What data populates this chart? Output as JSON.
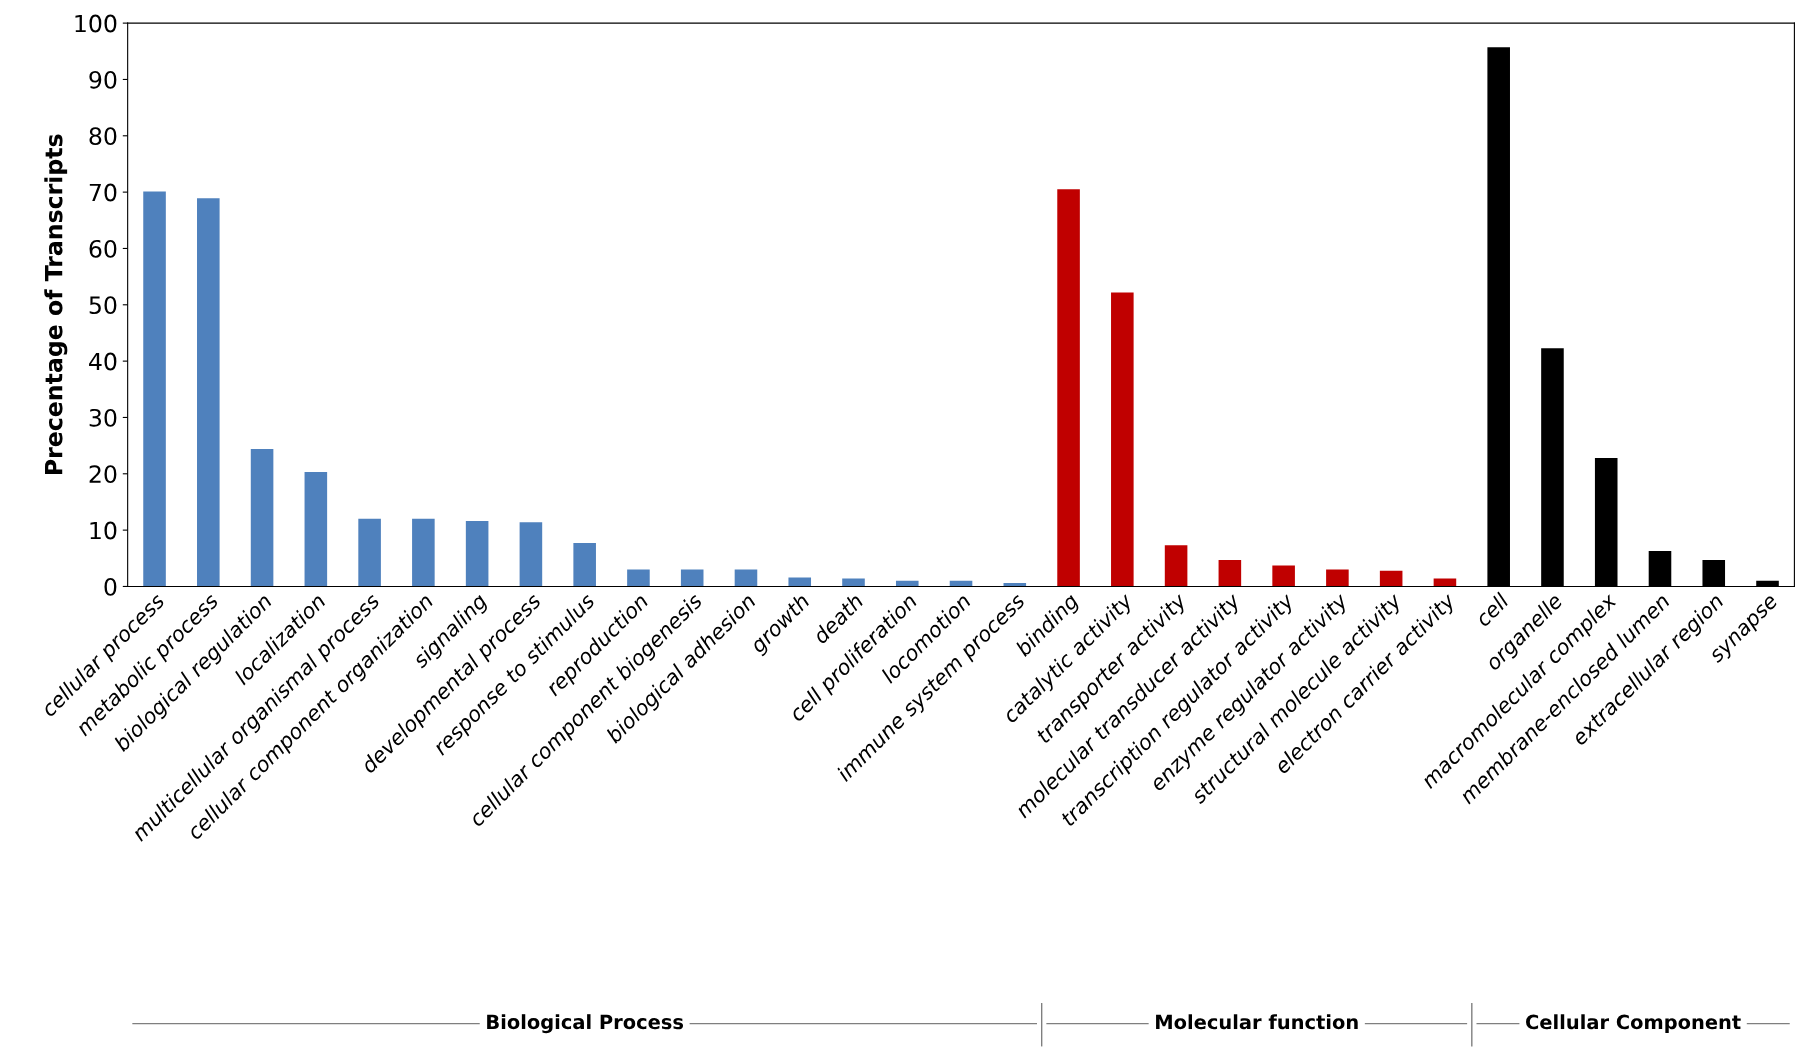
{
  "chart_data": {
    "type": "bar",
    "ylabel": "Precentage of Transcripts",
    "ylim": [
      0,
      100
    ],
    "yticks": [
      0,
      10,
      20,
      30,
      40,
      50,
      60,
      70,
      80,
      90,
      100
    ],
    "grid": false,
    "annotations": [
      "Biological Process",
      "Molecular function",
      "Cellular Component"
    ],
    "categories": [
      "cellular process",
      "metabolic process",
      "biological regulation",
      "localization",
      "multicellular organismal process",
      "cellular component organization",
      "signaling",
      "developmental process",
      "response to stimulus",
      "reproduction",
      "cellular component biogenesis",
      "biological adhesion",
      "growth",
      "death",
      "cell proliferation",
      "locomotion",
      "immune system process",
      "binding",
      "catalytic activity",
      "transporter activity",
      "molecular transducer activity",
      "transcription regulator activity",
      "enzyme regulator activity",
      "structural molecule activity",
      "electron carrier activity",
      "cell",
      "organelle",
      "macromolecular complex",
      "membrane-enclosed lumen",
      "extracellular region",
      "synapse"
    ],
    "series": [
      {
        "color": "#4f81bd",
        "values": [
          70.1,
          68.9,
          24.4,
          20.3,
          12.0,
          12.0,
          11.6,
          11.4,
          7.7,
          3.0,
          3.0,
          3.0,
          1.6,
          1.4,
          1.0,
          1.0,
          0.6,
          null,
          null,
          null,
          null,
          null,
          null,
          null,
          null,
          null,
          null,
          null,
          null,
          null,
          null
        ]
      },
      {
        "color": "#c00000",
        "values": [
          null,
          null,
          null,
          null,
          null,
          null,
          null,
          null,
          null,
          null,
          null,
          null,
          null,
          null,
          null,
          null,
          null,
          70.5,
          52.2,
          7.3,
          4.7,
          3.7,
          3.0,
          2.8,
          1.4,
          null,
          null,
          null,
          null,
          null,
          null
        ]
      },
      {
        "color": "#000000",
        "values": [
          null,
          null,
          null,
          null,
          null,
          null,
          null,
          null,
          null,
          null,
          null,
          null,
          null,
          null,
          null,
          null,
          null,
          null,
          null,
          null,
          null,
          null,
          null,
          null,
          null,
          95.7,
          42.3,
          22.8,
          6.3,
          4.7,
          1.0
        ]
      }
    ]
  }
}
